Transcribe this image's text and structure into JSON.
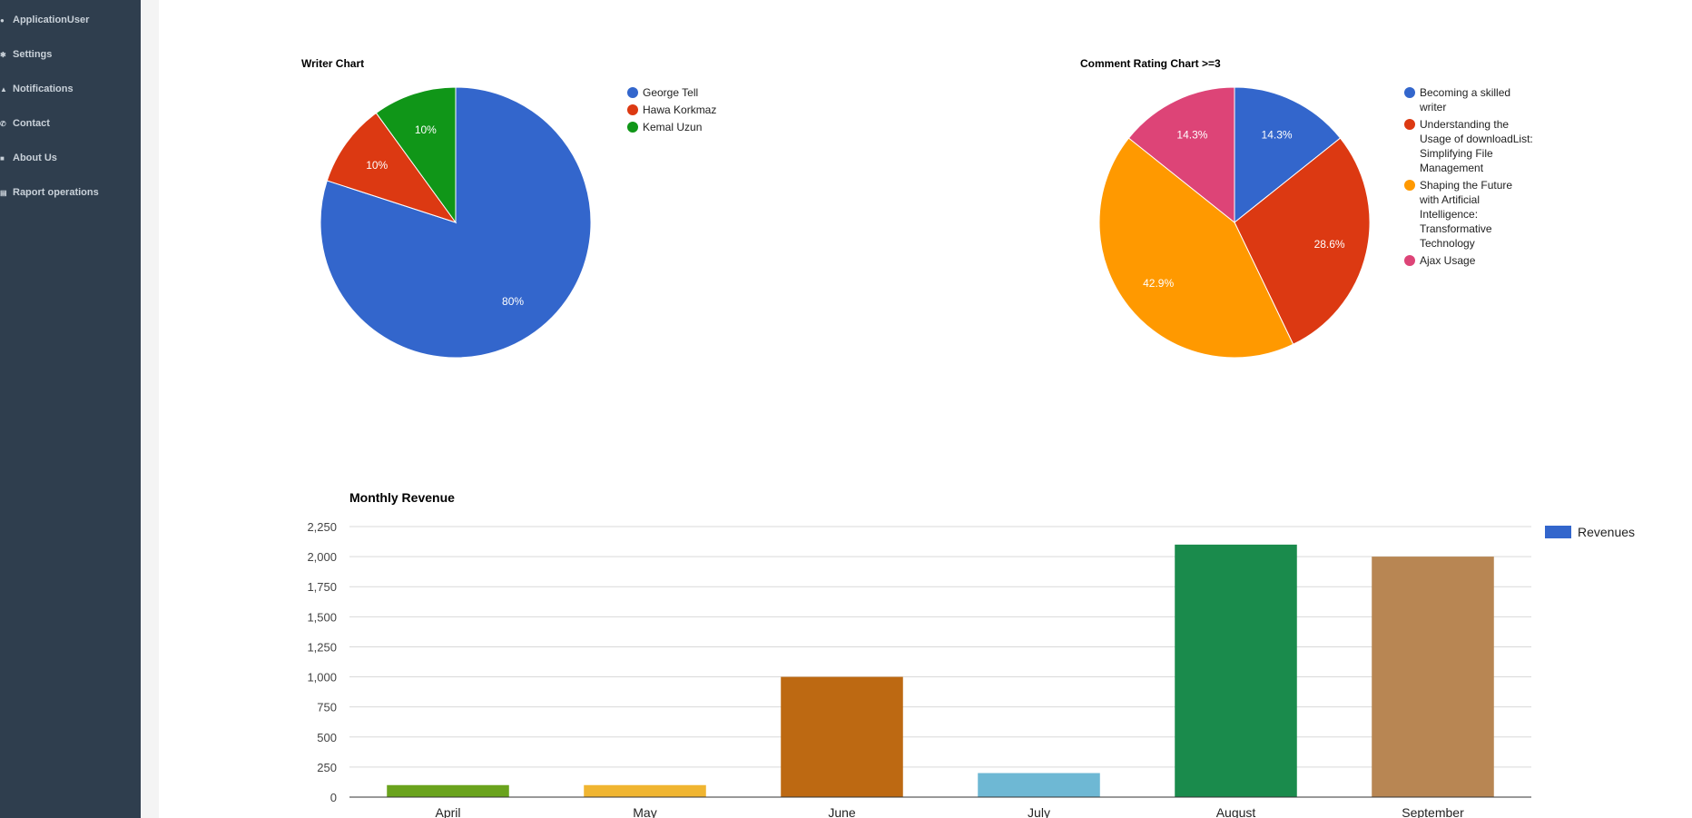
{
  "sidebar": {
    "items": [
      {
        "label": "ApplicationUser",
        "icon": "user-icon"
      },
      {
        "label": "Settings",
        "icon": "gear-icon"
      },
      {
        "label": "Notifications",
        "icon": "bell-icon"
      },
      {
        "label": "Contact",
        "icon": "phone-icon"
      },
      {
        "label": "About Us",
        "icon": "id-card-icon"
      },
      {
        "label": "Raport operations",
        "icon": "book-icon"
      }
    ]
  },
  "chart_data": [
    {
      "type": "pie",
      "title": "Writer Chart",
      "legend_position": "right",
      "slices": [
        {
          "label": "George Tell",
          "value": 80,
          "display": "80%",
          "color": "#3366cc"
        },
        {
          "label": "Hawa Korkmaz",
          "value": 10,
          "display": "10%",
          "color": "#dc3912"
        },
        {
          "label": "Kemal Uzun",
          "value": 10,
          "display": "10%",
          "color": "#109618"
        }
      ]
    },
    {
      "type": "pie",
      "title": "Comment Rating Chart >=3",
      "legend_position": "right",
      "slices": [
        {
          "label": "Becoming a skilled writer",
          "value": 14.3,
          "display": "14.3%",
          "color": "#3366cc"
        },
        {
          "label": "Understanding the Usage of downloadList: Simplifying File Management",
          "value": 28.6,
          "display": "28.6%",
          "color": "#dc3912"
        },
        {
          "label": "Shaping the Future with Artificial Intelligence: Transformative Technology",
          "value": 42.9,
          "display": "42.9%",
          "color": "#ff9900"
        },
        {
          "label": "Ajax Usage",
          "value": 14.3,
          "display": "14.3%",
          "color": "#dd4477"
        }
      ]
    },
    {
      "type": "bar",
      "title": "Monthly Revenue",
      "categories": [
        "April",
        "May",
        "June",
        "July",
        "August",
        "September"
      ],
      "series": [
        {
          "name": "Revenues",
          "values": [
            100,
            100,
            1000,
            200,
            2100,
            2000
          ]
        }
      ],
      "bar_colors": [
        "#6aa31d",
        "#f0b531",
        "#bd6912",
        "#6eb8d4",
        "#1a8b4c",
        "#b88653"
      ],
      "legend_color": "#3366cc",
      "ylim": [
        0,
        2250
      ],
      "yticks": [
        0,
        250,
        500,
        750,
        1000,
        1250,
        1500,
        1750,
        2000,
        2250
      ],
      "ytick_labels": [
        "0",
        "250",
        "500",
        "750",
        "1,000",
        "1,250",
        "1,500",
        "1,750",
        "2,000",
        "2,250"
      ],
      "grid": true,
      "legend_position": "right"
    }
  ]
}
